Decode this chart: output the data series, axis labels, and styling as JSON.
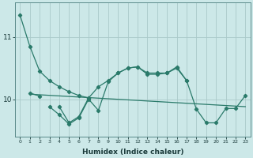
{
  "xlabel": "Humidex (Indice chaleur)",
  "bg_color": "#cce8e8",
  "line_color": "#2a7a6a",
  "grid_color": "#aacaca",
  "yticks": [
    10,
    11
  ],
  "ylim": [
    9.4,
    11.55
  ],
  "xlim": [
    -0.5,
    23.5
  ],
  "xticks": [
    0,
    1,
    2,
    3,
    4,
    5,
    6,
    7,
    8,
    9,
    10,
    11,
    12,
    13,
    14,
    15,
    16,
    17,
    18,
    19,
    20,
    21,
    22,
    23
  ],
  "line1_x": [
    0,
    1,
    2,
    3,
    4,
    5,
    6,
    7
  ],
  "line1_y": [
    11.35,
    10.85,
    10.45,
    10.3,
    10.2,
    10.12,
    10.06,
    10.02
  ],
  "line2_x": [
    1,
    2
  ],
  "line2_y": [
    10.1,
    10.05
  ],
  "line3_x": [
    3,
    4,
    5,
    6,
    7,
    8,
    9,
    10,
    11,
    12,
    13,
    14,
    15,
    16,
    17,
    18,
    19,
    20,
    21,
    22,
    23
  ],
  "line3_y": [
    9.88,
    9.75,
    9.6,
    9.7,
    10.0,
    9.82,
    10.28,
    10.42,
    10.5,
    10.52,
    10.4,
    10.4,
    10.42,
    10.5,
    10.3,
    9.84,
    9.62,
    9.62,
    9.85,
    9.85,
    10.06
  ],
  "line4_x": [
    4,
    5,
    6,
    7,
    8,
    9,
    10,
    11,
    12,
    13,
    14,
    15,
    16,
    17
  ],
  "line4_y": [
    9.88,
    9.62,
    9.72,
    10.02,
    10.2,
    10.3,
    10.42,
    10.5,
    10.52,
    10.42,
    10.42,
    10.42,
    10.52,
    10.3
  ],
  "trend_x": [
    1,
    23
  ],
  "trend_y": [
    10.08,
    9.88
  ]
}
